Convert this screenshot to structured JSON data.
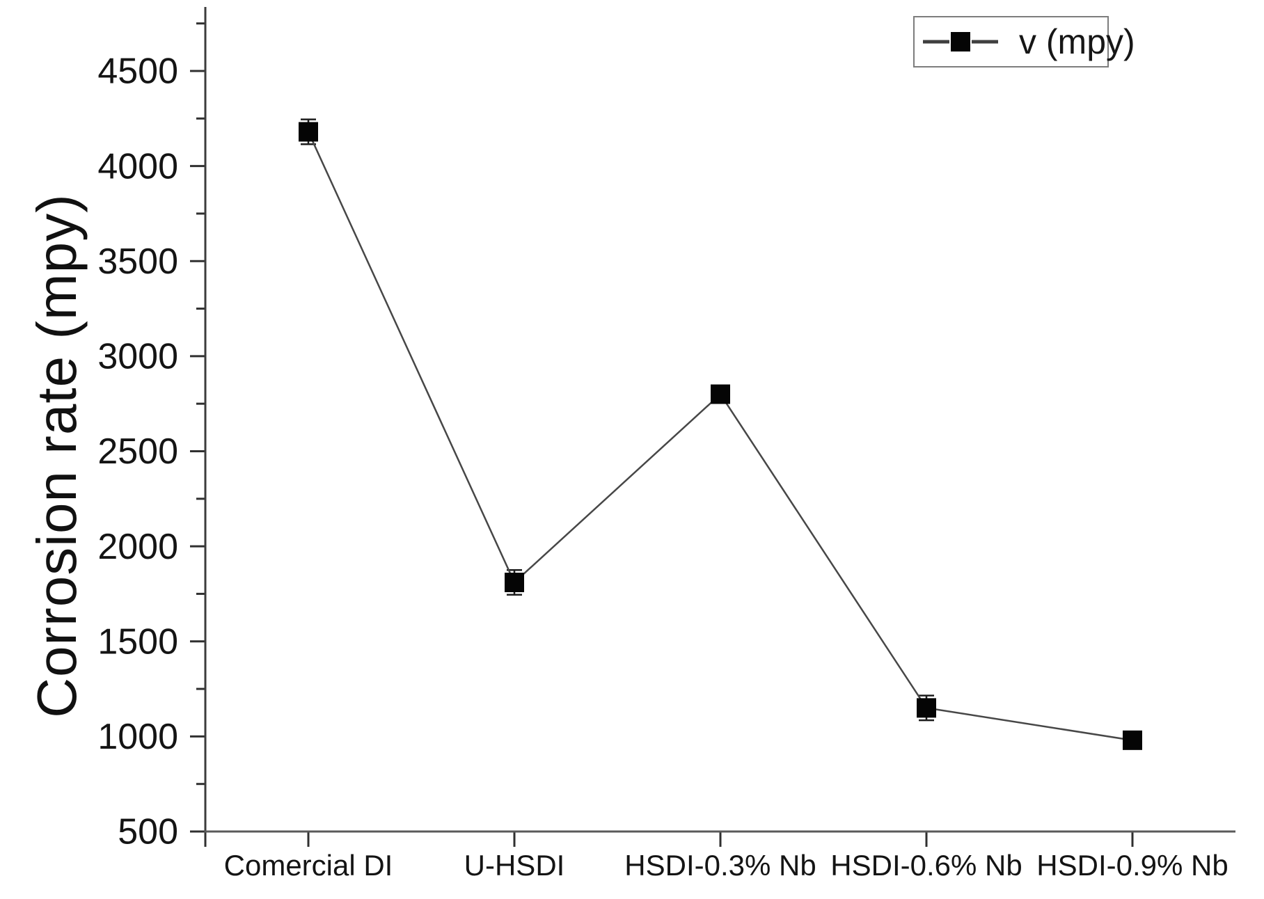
{
  "figure": {
    "background": "#ffffff",
    "axis_color": "#3c3c3c",
    "x_axis_color": "#5a5a5a",
    "tick_color": "#303030",
    "text_color": "#141414",
    "line_color": "#474747",
    "marker_color": "#050505",
    "legend_border_color": "#7d7d7d"
  },
  "legend": {
    "label": "v (mpy)"
  },
  "chart_data": {
    "type": "line",
    "title": "",
    "xlabel": "",
    "ylabel": "Corrosion rate (mpy)",
    "categories": [
      "Comercial DI",
      "U-HSDI",
      "HSDI-0.3% Nb",
      "HSDI-0.6% Nb",
      "HSDI-0.9% Nb"
    ],
    "series": [
      {
        "name": "v (mpy)",
        "values": [
          4180,
          1810,
          2800,
          1150,
          980
        ],
        "errors": [
          65,
          65,
          30,
          65,
          30
        ]
      }
    ],
    "ylim": [
      500,
      4840
    ],
    "yticks_major": [
      500,
      1000,
      1500,
      2000,
      2500,
      3000,
      3500,
      4000,
      4500
    ],
    "ytick_minor_step": 250,
    "grid": false,
    "legend_position": "top-right",
    "marker": "square",
    "line_style": "solid",
    "frame": "left-bottom"
  }
}
